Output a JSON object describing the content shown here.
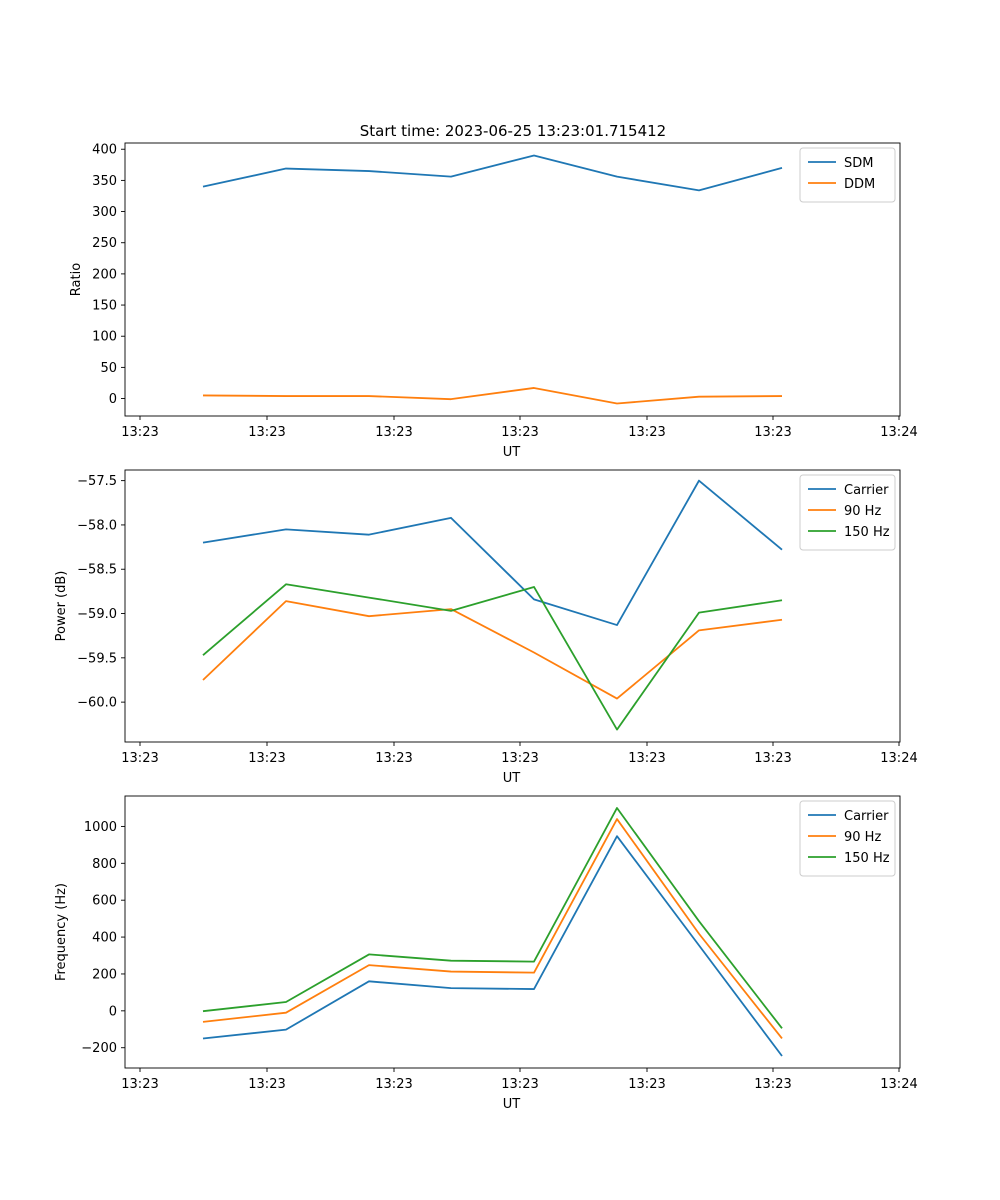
{
  "figure": {
    "title": "Start time: 2023-06-25 13:23:01.715412"
  },
  "chart_data": [
    {
      "type": "line",
      "xlabel": "UT",
      "ylabel": "Ratio",
      "x_tick_labels": [
        "13:23",
        "13:23",
        "13:23",
        "13:23",
        "13:23",
        "13:23",
        "13:24"
      ],
      "ylim": [
        -28,
        410
      ],
      "yticks": [
        0,
        50,
        100,
        150,
        200,
        250,
        300,
        350,
        400
      ],
      "legend_position": "top-right",
      "grid": false,
      "series": [
        {
          "name": "SDM",
          "color": "#1f77b4",
          "values": [
            340,
            369,
            365,
            356,
            390,
            356,
            334,
            370
          ]
        },
        {
          "name": "DDM",
          "color": "#ff7f0e",
          "values": [
            5,
            4,
            4,
            -1,
            17,
            -8,
            3,
            4
          ]
        }
      ]
    },
    {
      "type": "line",
      "xlabel": "UT",
      "ylabel": "Power (dB)",
      "x_tick_labels": [
        "13:23",
        "13:23",
        "13:23",
        "13:23",
        "13:23",
        "13:23",
        "13:24"
      ],
      "ylim": [
        -60.45,
        -57.38
      ],
      "yticks": [
        -60.0,
        -59.5,
        -59.0,
        -58.5,
        -58.0,
        -57.5
      ],
      "ytick_labels": [
        "−60.0",
        "−59.5",
        "−59.0",
        "−58.5",
        "−58.0",
        "−57.5"
      ],
      "legend_position": "top-right",
      "grid": false,
      "series": [
        {
          "name": "Carrier",
          "color": "#1f77b4",
          "values": [
            -58.2,
            -58.05,
            -58.11,
            -57.92,
            -58.84,
            -59.13,
            -57.5,
            -58.28
          ]
        },
        {
          "name": "90 Hz",
          "color": "#ff7f0e",
          "values": [
            -59.75,
            -58.86,
            -59.03,
            -58.95,
            -59.44,
            -59.96,
            -59.19,
            -59.07
          ]
        },
        {
          "name": "150 Hz",
          "color": "#2ca02c",
          "values": [
            -59.47,
            -58.67,
            -58.82,
            -58.97,
            -58.7,
            -60.31,
            -58.99,
            -58.85
          ]
        }
      ]
    },
    {
      "type": "line",
      "xlabel": "UT",
      "ylabel": "Frequency (Hz)",
      "x_tick_labels": [
        "13:23",
        "13:23",
        "13:23",
        "13:23",
        "13:23",
        "13:23",
        "13:24"
      ],
      "ylim": [
        -310,
        1165
      ],
      "yticks": [
        -200,
        0,
        200,
        400,
        600,
        800,
        1000
      ],
      "ytick_labels": [
        "−200",
        "0",
        "200",
        "400",
        "600",
        "800",
        "1000"
      ],
      "legend_position": "top-right",
      "grid": false,
      "series": [
        {
          "name": "Carrier",
          "color": "#1f77b4",
          "values": [
            -150,
            -102,
            160,
            123,
            118,
            947,
            355,
            -245
          ]
        },
        {
          "name": "90 Hz",
          "color": "#ff7f0e",
          "values": [
            -60,
            -10,
            248,
            213,
            207,
            1040,
            418,
            -150
          ]
        },
        {
          "name": "150 Hz",
          "color": "#2ca02c",
          "values": [
            -2,
            48,
            306,
            272,
            267,
            1100,
            486,
            -95
          ]
        }
      ]
    }
  ]
}
